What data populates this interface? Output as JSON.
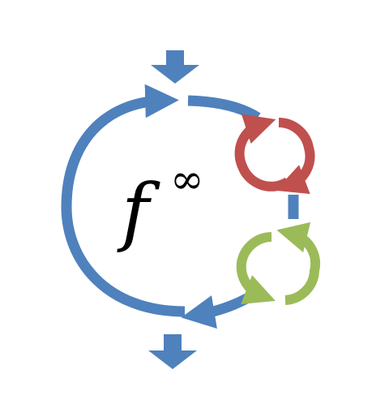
{
  "label": {
    "base": "f",
    "superscript": "∞"
  },
  "colors": {
    "outer_loop": "#4f81bd",
    "inner_loop_top": "#c0504d",
    "inner_loop_bottom": "#9bbb59",
    "text": "#000000"
  },
  "icons": [
    "input-arrow-icon",
    "output-arrow-icon",
    "outer-cycle-icon",
    "red-refresh-icon",
    "green-refresh-icon"
  ]
}
